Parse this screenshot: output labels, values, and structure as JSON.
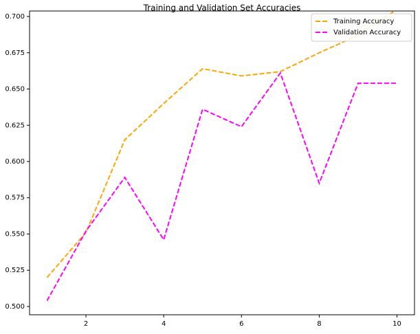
{
  "chart_data": {
    "type": "line",
    "title": "Training and Validation Set Accuracies",
    "x": [
      1,
      2,
      3,
      4,
      5,
      6,
      7,
      8,
      9,
      10
    ],
    "series": [
      {
        "name": "Training Accuracy",
        "color": "#ffa500",
        "values": [
          0.52,
          0.551,
          0.615,
          0.64,
          0.664,
          0.659,
          0.662,
          0.675,
          0.687,
          0.705
        ]
      },
      {
        "name": "Validation Accuracy",
        "color": "#ff00ff",
        "values": [
          0.504,
          0.552,
          0.589,
          0.546,
          0.636,
          0.624,
          0.661,
          0.585,
          0.654,
          0.654
        ]
      }
    ],
    "xlim": [
      0.55,
      10.45
    ],
    "ylim": [
      0.4943,
      0.7038
    ],
    "xticks": [
      2,
      4,
      6,
      8,
      10
    ],
    "yticks": [
      {
        "value": 0.5,
        "label": "0.500"
      },
      {
        "value": 0.525,
        "label": "0.525"
      },
      {
        "value": 0.55,
        "label": "0.550"
      },
      {
        "value": 0.575,
        "label": "0.575"
      },
      {
        "value": 0.6,
        "label": "0.600"
      },
      {
        "value": 0.625,
        "label": "0.625"
      },
      {
        "value": 0.65,
        "label": "0.650"
      },
      {
        "value": 0.675,
        "label": "0.675"
      },
      {
        "value": 0.7,
        "label": "0.700"
      }
    ],
    "legend": "upper right",
    "line_style": "dashed"
  }
}
